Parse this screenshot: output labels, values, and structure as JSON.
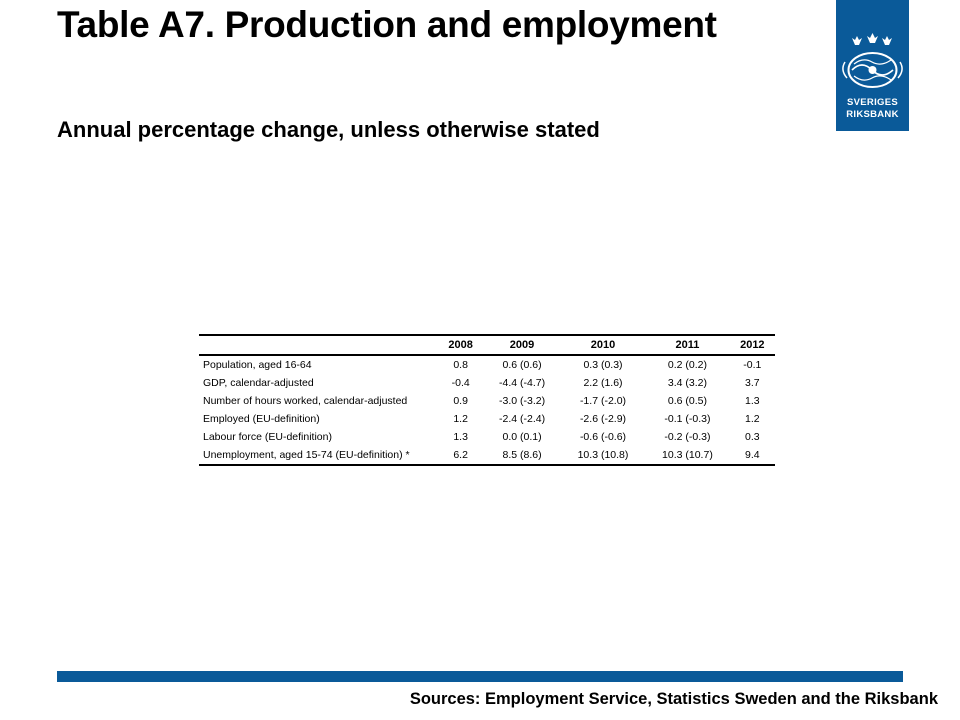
{
  "title": "Table A7. Production and employment",
  "subtitle": "Annual percentage change, unless otherwise stated",
  "logo": {
    "line1": "SVERIGES",
    "line2": "RIKSBANK",
    "color": "#0a5a99"
  },
  "table": {
    "header": [
      "",
      "2008",
      "2009",
      "2010",
      "2011",
      "2012"
    ],
    "rows": [
      {
        "label": "Population, aged 16-64",
        "values": [
          "0.8",
          "0.6 (0.6)",
          "0.3 (0.3)",
          "0.2 (0.2)",
          "-0.1"
        ]
      },
      {
        "label": "GDP, calendar-adjusted",
        "values": [
          "-0.4",
          "-4.4 (-4.7)",
          "2.2 (1.6)",
          "3.4 (3.2)",
          "3.7"
        ]
      },
      {
        "label": "Number of hours worked, calendar-adjusted",
        "values": [
          "0.9",
          "-3.0 (-3.2)",
          "-1.7 (-2.0)",
          "0.6 (0.5)",
          "1.3"
        ]
      },
      {
        "label": "Employed (EU-definition)",
        "values": [
          "1.2",
          "-2.4 (-2.4)",
          "-2.6 (-2.9)",
          "-0.1 (-0.3)",
          "1.2"
        ]
      },
      {
        "label": "Labour force (EU-definition)",
        "values": [
          "1.3",
          "0.0 (0.1)",
          "-0.6 (-0.6)",
          "-0.2 (-0.3)",
          "0.3"
        ]
      },
      {
        "label": "Unemployment, aged 15-74 (EU-definition) *",
        "values": [
          "6.2",
          "8.5 (8.6)",
          "10.3 (10.8)",
          "10.3 (10.7)",
          "9.4"
        ]
      }
    ]
  },
  "footer": {
    "sources": "Sources: Employment Service, Statistics Sweden and the Riksbank"
  },
  "colors": {
    "accent": "#0a5a99"
  }
}
